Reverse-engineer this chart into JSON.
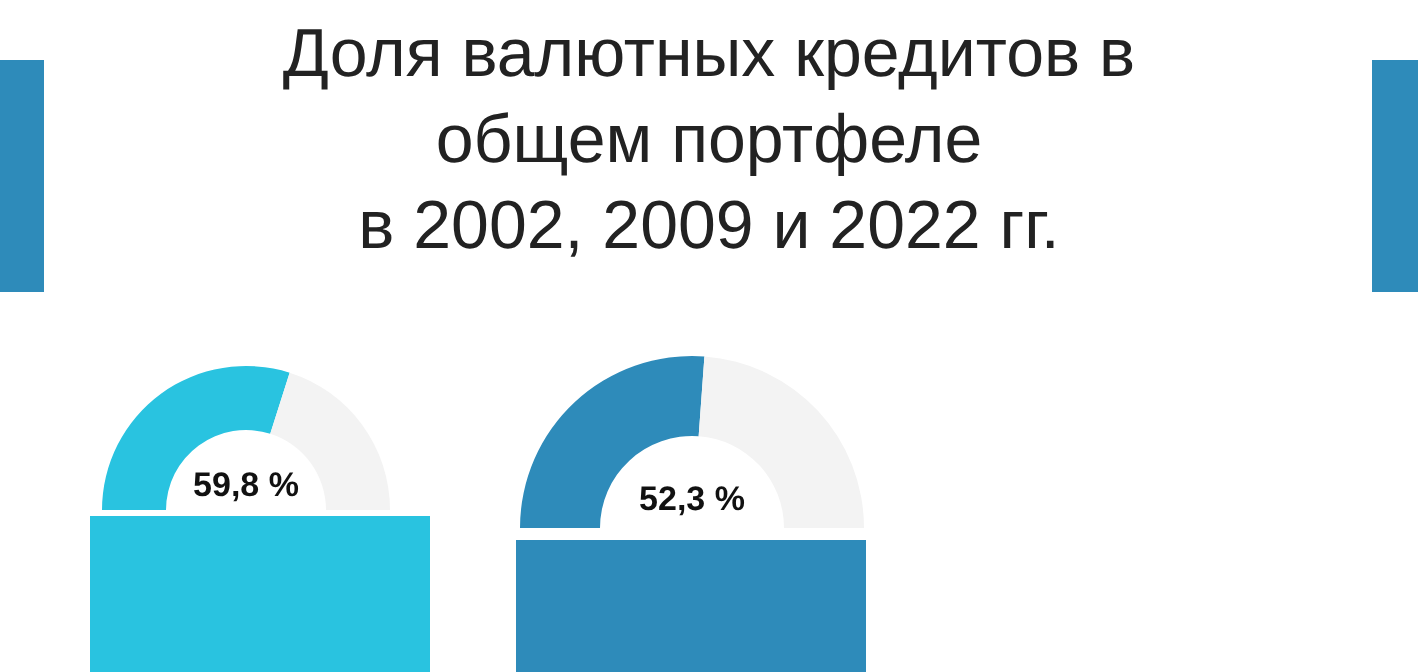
{
  "chart_data": [
    {
      "type": "donut",
      "title": "Доля валютных кредитов в\nобщем портфеле\nв 2002, 2009 и 2022 гг.",
      "categories": [
        null,
        null
      ],
      "values": [
        59.8,
        40.2
      ],
      "colors": [
        "#29c3e0",
        "#f3f3f3"
      ],
      "value_labels": [
        "59,8 %",
        null
      ]
    },
    {
      "type": "donut",
      "categories": [
        null,
        null
      ],
      "values": [
        52.3,
        47.7
      ],
      "colors": [
        "#2e8bba",
        "#f3f3f3"
      ],
      "value_labels": [
        "52,3 %",
        null
      ]
    }
  ]
}
